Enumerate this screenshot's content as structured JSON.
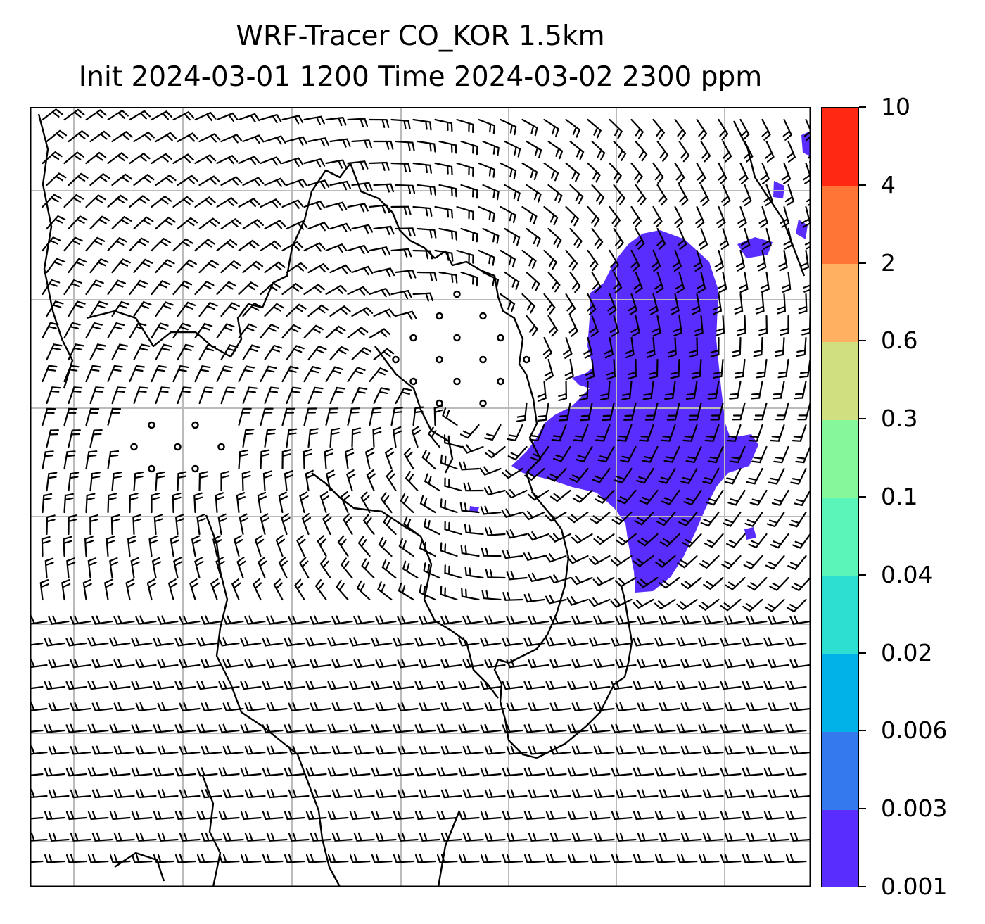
{
  "title": {
    "line1": "WRF-Tracer CO_KOR 1.5km",
    "line2": "Init 2024-03-01 1200 Time 2024-03-02 2300 ppm"
  },
  "colorbar": {
    "levels": [
      "0.001",
      "0.003",
      "0.006",
      "0.02",
      "0.04",
      "0.1",
      "0.3",
      "0.6",
      "2",
      "4",
      "10"
    ],
    "colors": [
      "#5a2dff",
      "#3479ed",
      "#00b2e8",
      "#2ddfd0",
      "#5cf5b9",
      "#86f79b",
      "#d0e081",
      "#ffb060",
      "#ff7536",
      "#ff2813"
    ]
  },
  "map": {
    "field": "CO_KOR tracer concentration",
    "units": "ppm",
    "plume_color": "#5a2dff",
    "gridlines": "on",
    "overlay": "wind barbs",
    "coastline_color": "#000000",
    "grid_color": "#bbbbbb"
  }
}
